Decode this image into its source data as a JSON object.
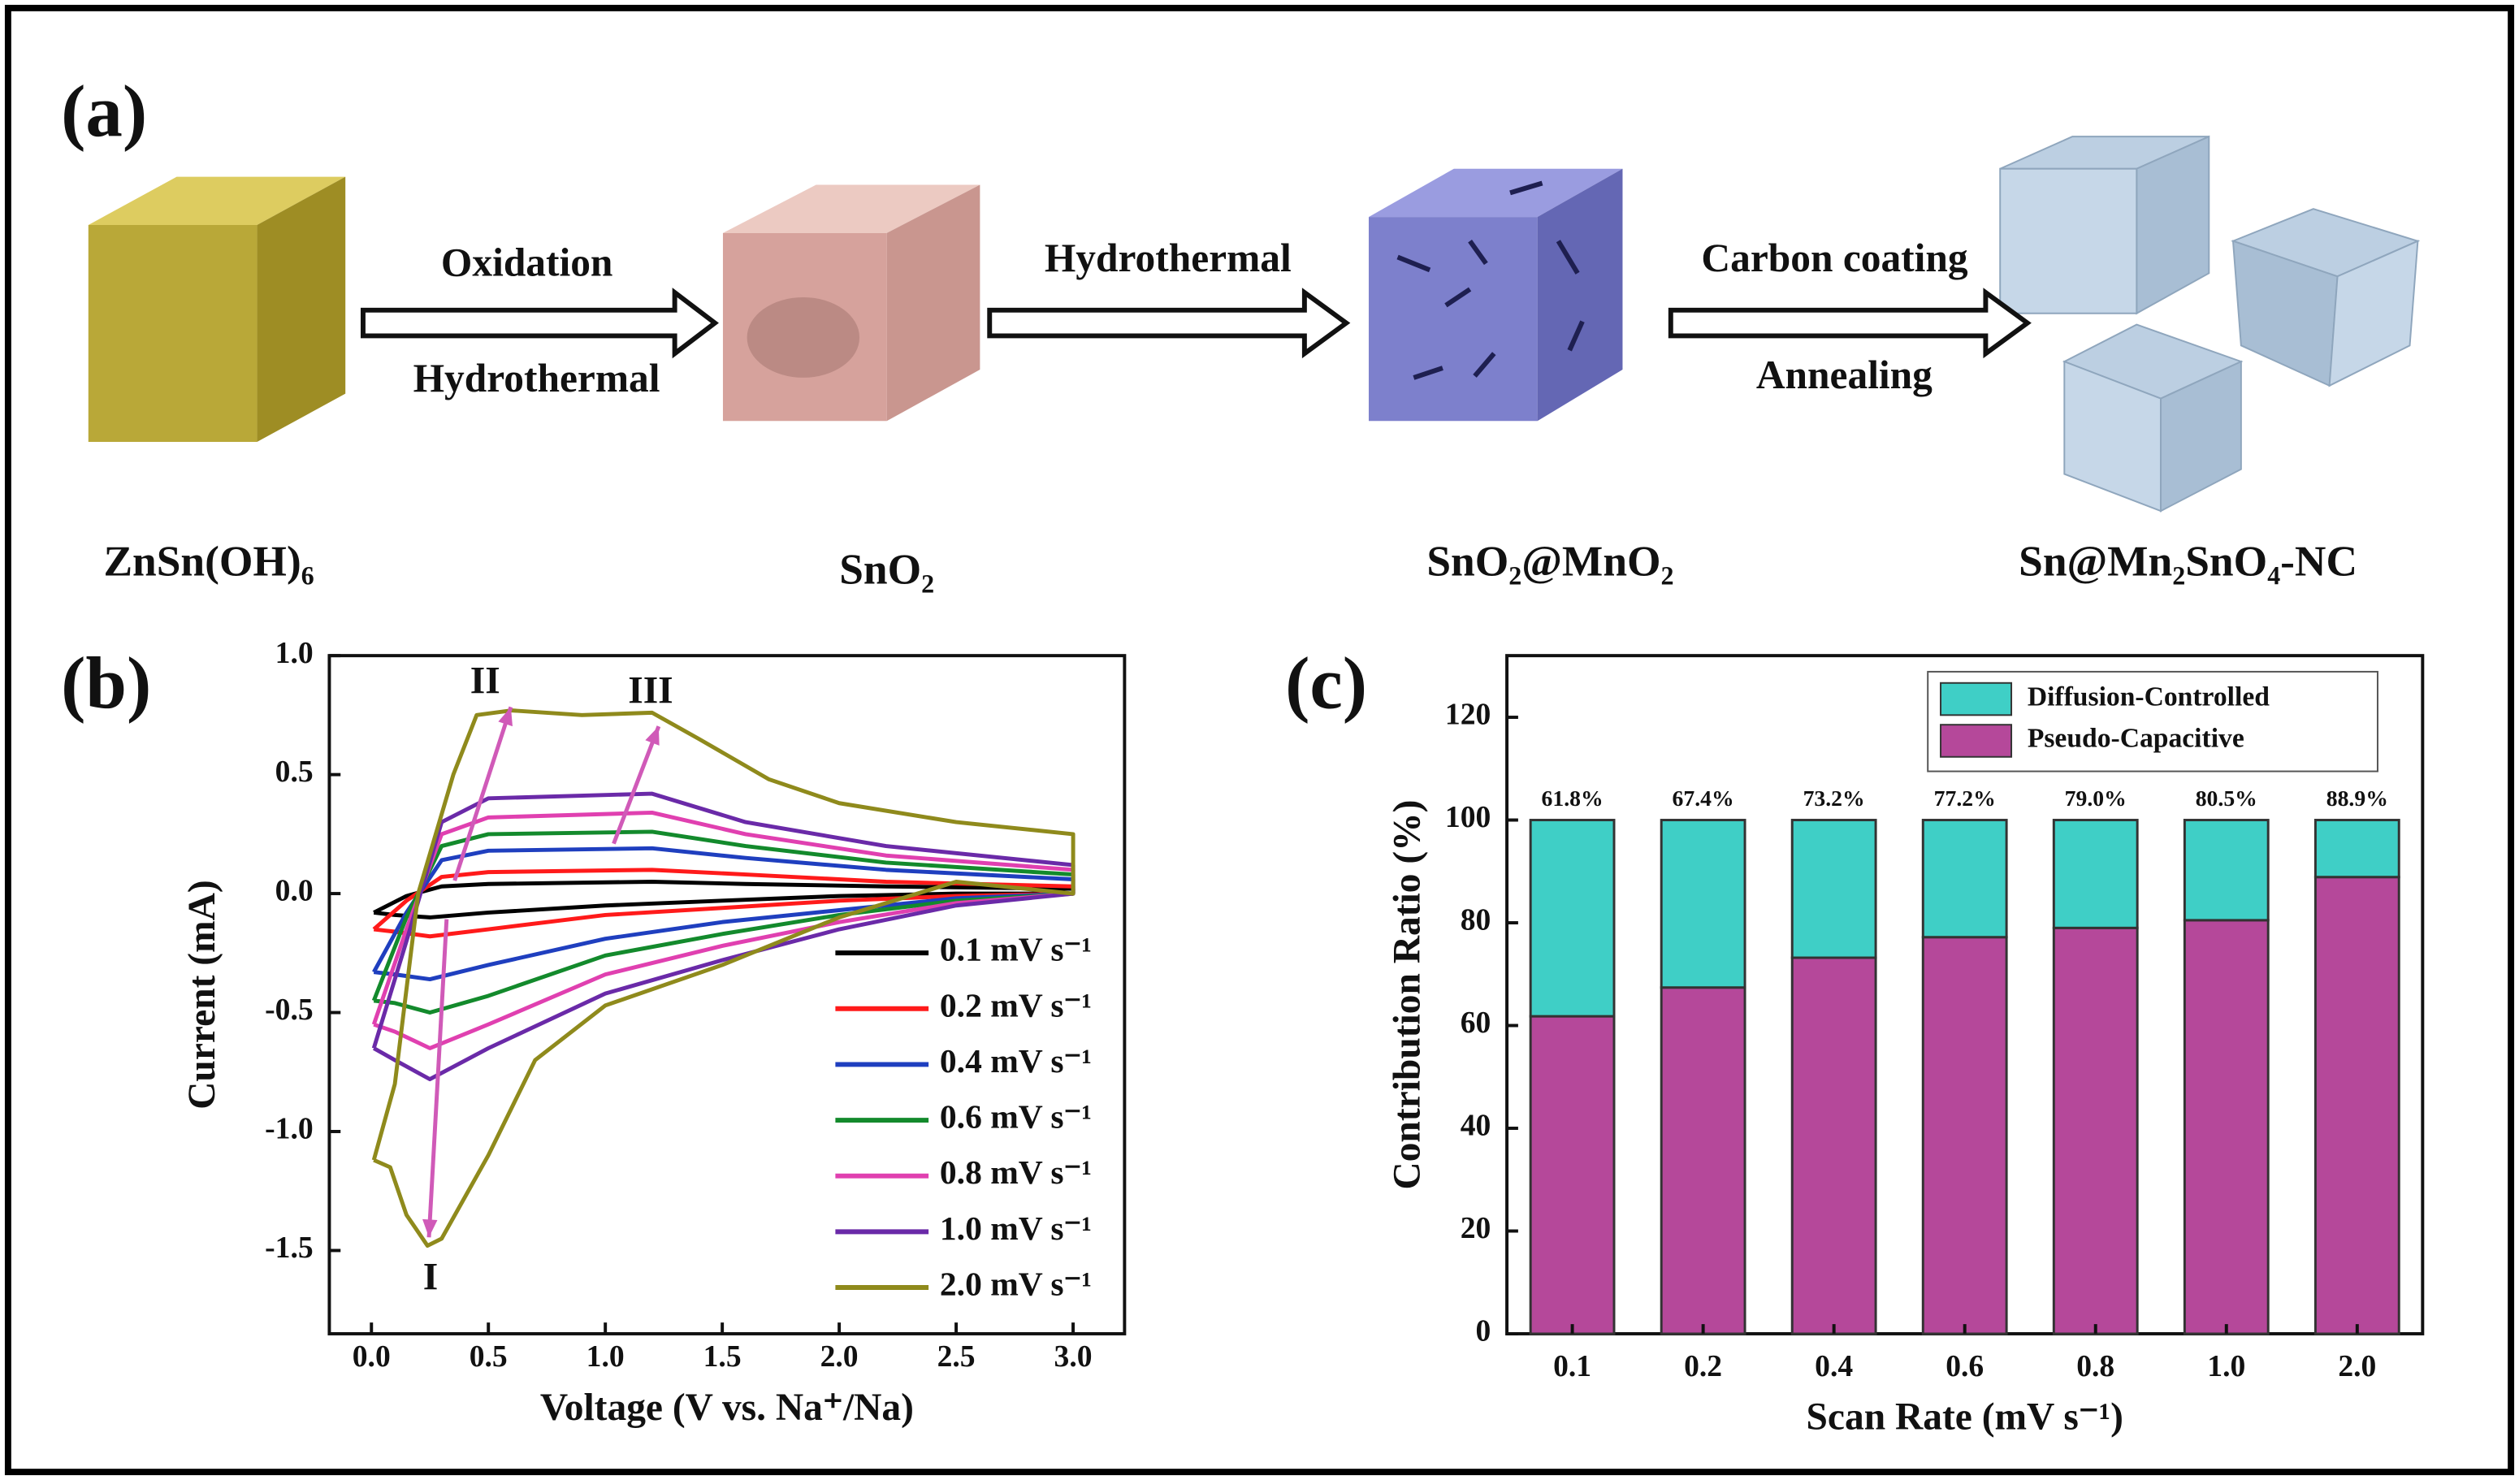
{
  "panels": {
    "a": {
      "label": "(a)",
      "materials": [
        "ZnSn(OH)₆",
        "SnO₂",
        "SnO₂@MnO₂",
        "Sn@Mn₂SnO₄-NC"
      ],
      "steps": [
        {
          "above": "Oxidation",
          "below": "Hydrothermal"
        },
        {
          "above": "Hydrothermal"
        },
        {
          "above": "Carbon coating",
          "below": "Annealing"
        }
      ]
    }
  },
  "chart_data": [
    {
      "type": "line",
      "panel_label": "(b)",
      "x_label": "Voltage (V vs. Na⁺/Na)",
      "y_label": "Current (mA)",
      "xlim": [
        -0.18,
        3.22
      ],
      "ylim": [
        -1.85,
        1.0
      ],
      "xticks": [
        {
          "value": 0,
          "label": "0.0"
        },
        {
          "value": 0.5,
          "label": "0.5"
        },
        {
          "value": 1,
          "label": "1.0"
        },
        {
          "value": 1.5,
          "label": "1.5"
        },
        {
          "value": 2,
          "label": "2.0"
        },
        {
          "value": 2.5,
          "label": "2.5"
        },
        {
          "value": 3,
          "label": "3.0"
        }
      ],
      "yticks": [
        {
          "value": 1,
          "label": "1.0"
        },
        {
          "value": 0.5,
          "label": "0.5"
        },
        {
          "value": 0,
          "label": "0.0"
        },
        {
          "value": -0.5,
          "label": "-0.5"
        },
        {
          "value": -1,
          "label": "-1.0"
        },
        {
          "value": -1.5,
          "label": "-1.5"
        }
      ],
      "annotations": [
        "I",
        "II",
        "III"
      ],
      "series": [
        {
          "name": "0.1 mV s⁻¹",
          "color": "#000000",
          "x": [
            0.01,
            0.15,
            0.3,
            0.5,
            1.2,
            1.6,
            2.2,
            3.0,
            3.0,
            2.5,
            2.0,
            1.5,
            1.0,
            0.5,
            0.25,
            0.1,
            0.01
          ],
          "values": [
            -0.08,
            -0.01,
            0.03,
            0.04,
            0.05,
            0.04,
            0.03,
            0.02,
            0.0,
            0.0,
            -0.01,
            -0.03,
            -0.05,
            -0.08,
            -0.1,
            -0.09,
            -0.08
          ]
        },
        {
          "name": "0.2 mV s⁻¹",
          "color": "#ff1a1a",
          "x": [
            0.01,
            0.15,
            0.3,
            0.5,
            1.2,
            1.6,
            2.2,
            3.0,
            3.0,
            2.5,
            2.0,
            1.5,
            1.0,
            0.5,
            0.25,
            0.1,
            0.01
          ],
          "values": [
            -0.15,
            -0.03,
            0.07,
            0.09,
            0.1,
            0.08,
            0.05,
            0.03,
            0.0,
            -0.01,
            -0.03,
            -0.06,
            -0.09,
            -0.15,
            -0.18,
            -0.16,
            -0.15
          ]
        },
        {
          "name": "0.4 mV s⁻¹",
          "color": "#1f3fbf",
          "x": [
            0.01,
            0.15,
            0.3,
            0.5,
            1.2,
            1.6,
            2.2,
            3.0,
            3.0,
            2.5,
            2.0,
            1.5,
            1.0,
            0.5,
            0.25,
            0.1,
            0.01
          ],
          "values": [
            -0.33,
            -0.08,
            0.14,
            0.18,
            0.19,
            0.15,
            0.1,
            0.06,
            0.0,
            -0.02,
            -0.07,
            -0.12,
            -0.19,
            -0.3,
            -0.36,
            -0.34,
            -0.33
          ]
        },
        {
          "name": "0.6 mV s⁻¹",
          "color": "#138a2c",
          "x": [
            0.01,
            0.15,
            0.3,
            0.5,
            1.2,
            1.6,
            2.2,
            3.0,
            3.0,
            2.5,
            2.0,
            1.5,
            1.0,
            0.5,
            0.25,
            0.1,
            0.01
          ],
          "values": [
            -0.45,
            -0.1,
            0.2,
            0.25,
            0.26,
            0.2,
            0.13,
            0.08,
            0.0,
            -0.03,
            -0.09,
            -0.17,
            -0.26,
            -0.43,
            -0.5,
            -0.46,
            -0.45
          ]
        },
        {
          "name": "0.8 mV s⁻¹",
          "color": "#e040b0",
          "x": [
            0.01,
            0.15,
            0.3,
            0.5,
            1.2,
            1.6,
            2.2,
            3.0,
            3.0,
            2.5,
            2.0,
            1.5,
            1.0,
            0.5,
            0.25,
            0.1,
            0.01
          ],
          "values": [
            -0.55,
            -0.15,
            0.25,
            0.32,
            0.34,
            0.25,
            0.16,
            0.1,
            0.0,
            -0.04,
            -0.12,
            -0.22,
            -0.34,
            -0.55,
            -0.65,
            -0.58,
            -0.55
          ]
        },
        {
          "name": "1.0 mV s⁻¹",
          "color": "#6a2aa8",
          "x": [
            0.01,
            0.15,
            0.3,
            0.5,
            1.2,
            1.6,
            2.2,
            3.0,
            3.0,
            2.5,
            2.0,
            1.5,
            1.0,
            0.5,
            0.25,
            0.1,
            0.01
          ],
          "values": [
            -0.65,
            -0.2,
            0.3,
            0.4,
            0.42,
            0.3,
            0.2,
            0.12,
            0.0,
            -0.05,
            -0.15,
            -0.28,
            -0.42,
            -0.65,
            -0.78,
            -0.7,
            -0.65
          ]
        },
        {
          "name": "2.0 mV s⁻¹",
          "color": "#8f8a1c",
          "x": [
            0.01,
            0.1,
            0.2,
            0.35,
            0.45,
            0.6,
            0.9,
            1.2,
            1.4,
            1.7,
            2.0,
            2.5,
            3.0,
            3.0,
            2.5,
            2.0,
            1.5,
            1.0,
            0.7,
            0.5,
            0.3,
            0.24,
            0.15,
            0.08,
            0.01
          ],
          "values": [
            -1.12,
            -0.8,
            0.0,
            0.5,
            0.75,
            0.77,
            0.75,
            0.76,
            0.65,
            0.48,
            0.38,
            0.3,
            0.25,
            0.0,
            0.05,
            -0.1,
            -0.3,
            -0.47,
            -0.7,
            -1.1,
            -1.45,
            -1.48,
            -1.35,
            -1.15,
            -1.12
          ]
        }
      ]
    },
    {
      "type": "stacked_bar",
      "panel_label": "(c)",
      "x_label": "Scan Rate (mV s⁻¹)",
      "y_label": "Contribution Ratio (%)",
      "categories": [
        "0.1",
        "0.2",
        "0.4",
        "0.6",
        "0.8",
        "1.0",
        "2.0"
      ],
      "ylim": [
        0,
        132
      ],
      "yticks": [
        0,
        20,
        40,
        60,
        80,
        100,
        120
      ],
      "series": [
        {
          "name": "Pseudo-Capacitive",
          "color": "#b5489a",
          "values": [
            61.8,
            67.4,
            73.2,
            77.2,
            79.0,
            80.5,
            88.9
          ],
          "value_labels": [
            "61.8%",
            "67.4%",
            "73.2%",
            "77.2%",
            "79.0%",
            "80.5%",
            "88.9%"
          ]
        },
        {
          "name": "Diffusion-Controlled",
          "color": "#3fcfc6",
          "values": [
            38.2,
            32.6,
            26.8,
            22.8,
            21.0,
            19.5,
            11.1
          ]
        }
      ]
    }
  ]
}
